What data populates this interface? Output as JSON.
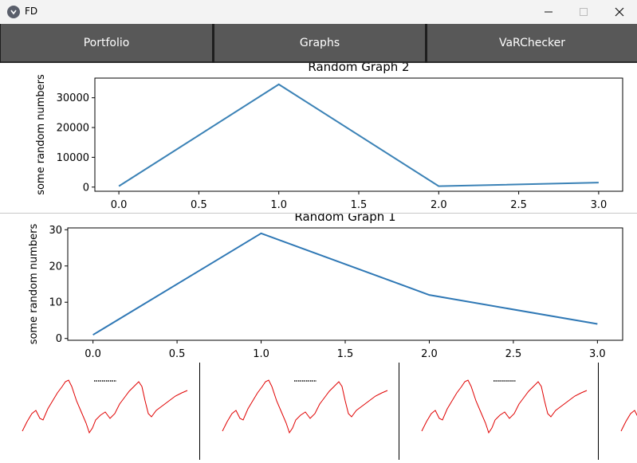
{
  "window": {
    "title": "FD"
  },
  "nav": {
    "tabs": [
      "Portfolio",
      "Graphs",
      "VaRChecker"
    ]
  },
  "charts": {
    "top": {
      "title": "Random Graph 2",
      "ylabel": "some random numbers"
    },
    "bottom": {
      "title": "Random Graph 1",
      "ylabel": "some random numbers"
    }
  },
  "chart_data": [
    {
      "type": "line",
      "title": "Random Graph 2",
      "xlabel": "",
      "ylabel": "some random numbers",
      "x": [
        0,
        1,
        2,
        3
      ],
      "series": [
        {
          "values": [
            300,
            34500,
            300,
            1500
          ]
        }
      ],
      "xticks": [
        0.0,
        0.5,
        1.0,
        1.5,
        2.0,
        2.5,
        3.0
      ],
      "xtick_labels": [
        "0.0",
        "0.5",
        "1.0",
        "1.5",
        "2.0",
        "2.5",
        "3.0"
      ],
      "yticks": [
        0,
        10000,
        20000,
        30000
      ],
      "ytick_labels": [
        "0",
        "10000",
        "20000",
        "30000"
      ],
      "xlim": [
        -0.15,
        3.15
      ],
      "ylim": [
        -1400,
        36600
      ],
      "color": "#3b82b6"
    },
    {
      "type": "line",
      "title": "Random Graph 1",
      "xlabel": "",
      "ylabel": "some random numbers",
      "x": [
        0,
        1,
        2,
        3
      ],
      "series": [
        {
          "values": [
            1,
            29,
            12,
            4
          ]
        }
      ],
      "xticks": [
        0.0,
        0.5,
        1.0,
        1.5,
        2.0,
        2.5,
        3.0
      ],
      "xtick_labels": [
        "0.0",
        "0.5",
        "1.0",
        "1.5",
        "2.0",
        "2.5",
        "3.0"
      ],
      "yticks": [
        0,
        10,
        20,
        30
      ],
      "ytick_labels": [
        "0",
        "10",
        "20",
        "30"
      ],
      "xlim": [
        -0.15,
        3.15
      ],
      "ylim": [
        -0.5,
        30.5
      ],
      "color": "#2f78b5"
    }
  ],
  "thumbnails": {
    "count": 4,
    "caption": "",
    "line_color": "#e00000"
  }
}
